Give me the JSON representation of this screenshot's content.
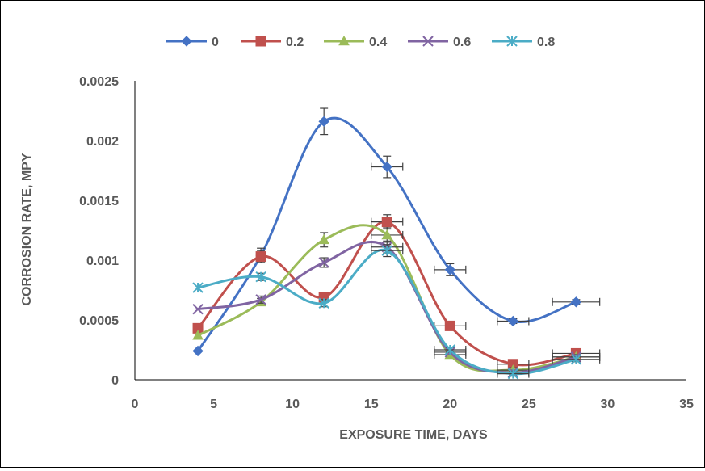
{
  "chart_data": {
    "type": "line",
    "xlabel": "EXPOSURE TIME, DAYS",
    "ylabel": "CORROSION RATE, MPY",
    "xlim": [
      0,
      35
    ],
    "ylim": [
      0,
      0.0025
    ],
    "x_ticks": [
      "0",
      "5",
      "10",
      "15",
      "20",
      "25",
      "30",
      "35"
    ],
    "y_ticks": [
      "0",
      "0.0005",
      "0.001",
      "0.0015",
      "0.002",
      "0.0025"
    ],
    "legend_position": "top",
    "grid": false,
    "smooth": true,
    "error_bars": true,
    "series": [
      {
        "name": "0",
        "color": "#4472C4",
        "marker": "diamond",
        "x": [
          4,
          8,
          12,
          16,
          20,
          24,
          28
        ],
        "y": [
          0.00024,
          0.00104,
          0.00216,
          0.00178,
          0.00092,
          0.00049,
          0.00065
        ],
        "y_err": [
          0,
          6e-05,
          0.00011,
          9e-05,
          5e-05,
          2e-05,
          2e-05
        ],
        "x_err": [
          0,
          0,
          0,
          1,
          1,
          1,
          1.5
        ]
      },
      {
        "name": "0.2",
        "color": "#C0504D",
        "marker": "square",
        "x": [
          4,
          8,
          12,
          16,
          20,
          24,
          28
        ],
        "y": [
          0.00043,
          0.00103,
          0.00069,
          0.00132,
          0.00045,
          0.00013,
          0.00022
        ],
        "y_err": [
          0,
          5e-05,
          4e-05,
          6e-05,
          3e-05,
          2e-05,
          2e-05
        ],
        "x_err": [
          0,
          0,
          0,
          1,
          1,
          1,
          1.5
        ]
      },
      {
        "name": "0.4",
        "color": "#9BBB59",
        "marker": "triangle",
        "x": [
          4,
          8,
          12,
          16,
          20,
          24,
          28
        ],
        "y": [
          0.00037,
          0.00065,
          0.00117,
          0.00121,
          0.00021,
          8e-05,
          0.00019
        ],
        "y_err": [
          0,
          3e-05,
          6e-05,
          6e-05,
          2e-05,
          2e-05,
          2e-05
        ],
        "x_err": [
          0,
          0,
          0,
          1,
          1,
          1,
          1.5
        ]
      },
      {
        "name": "0.6",
        "color": "#8064A2",
        "marker": "x",
        "x": [
          4,
          8,
          12,
          16,
          20,
          24,
          28
        ],
        "y": [
          0.00059,
          0.00067,
          0.00098,
          0.00111,
          0.00023,
          6e-05,
          0.00019
        ],
        "y_err": [
          0,
          3e-05,
          4e-05,
          5e-05,
          2e-05,
          2e-05,
          2e-05
        ],
        "x_err": [
          0,
          0,
          0,
          1,
          1,
          1,
          1.5
        ]
      },
      {
        "name": "0.8",
        "color": "#4BACC6",
        "marker": "asterisk",
        "x": [
          4,
          8,
          12,
          16,
          20,
          24,
          28
        ],
        "y": [
          0.00077,
          0.00086,
          0.00064,
          0.00108,
          0.00025,
          5e-05,
          0.00017
        ],
        "y_err": [
          0,
          3e-05,
          3e-05,
          5e-05,
          2e-05,
          2e-05,
          2e-05
        ],
        "x_err": [
          0,
          0,
          0,
          1,
          1,
          1,
          1.5
        ]
      }
    ]
  }
}
